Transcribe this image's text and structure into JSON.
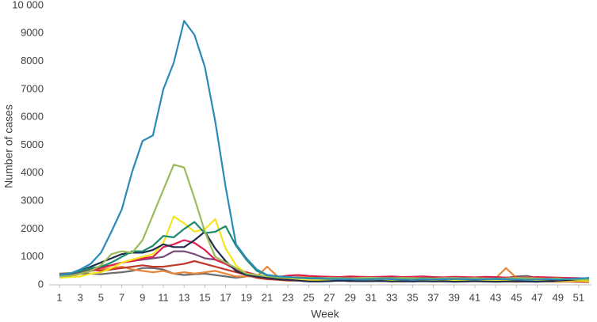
{
  "chart_data": {
    "type": "line",
    "y_label": "Number of cases",
    "x_label": "Week",
    "x": [
      1,
      2,
      3,
      4,
      5,
      6,
      7,
      8,
      9,
      10,
      11,
      12,
      13,
      14,
      15,
      16,
      17,
      18,
      19,
      20,
      21,
      22,
      23,
      24,
      25,
      26,
      27,
      28,
      29,
      30,
      31,
      32,
      33,
      34,
      35,
      36,
      37,
      38,
      39,
      40,
      41,
      42,
      43,
      44,
      45,
      46,
      47,
      48,
      49,
      50,
      51,
      52
    ],
    "xlim": [
      1,
      52
    ],
    "xticks": [
      1,
      3,
      5,
      7,
      9,
      11,
      13,
      15,
      17,
      19,
      21,
      23,
      25,
      27,
      29,
      31,
      33,
      35,
      37,
      39,
      41,
      43,
      45,
      47,
      49,
      51
    ],
    "ylim": [
      0,
      10000
    ],
    "yticks": [
      0,
      1000,
      2000,
      3000,
      4000,
      5000,
      6000,
      7000,
      8000,
      9000,
      {
        "value": 10000,
        "label": "10 000"
      }
    ],
    "grid": false,
    "series": [
      {
        "color": "#6d6d6d",
        "values": [
          400,
          420,
          400,
          400,
          380,
          420,
          450,
          500,
          600,
          600,
          550,
          400,
          350,
          380,
          400,
          350,
          300,
          250,
          300,
          300,
          280,
          250,
          240,
          230,
          220,
          220,
          230,
          250,
          280,
          260,
          250,
          240,
          230,
          250,
          240,
          230,
          250,
          240,
          230,
          250,
          240,
          250,
          260,
          250,
          300,
          320,
          250,
          220,
          200,
          180,
          160,
          150
        ]
      },
      {
        "color": "#e8863a",
        "values": [
          250,
          300,
          400,
          500,
          550,
          600,
          650,
          550,
          500,
          450,
          500,
          400,
          450,
          400,
          450,
          500,
          400,
          300,
          300,
          300,
          650,
          300,
          250,
          280,
          300,
          260,
          250,
          240,
          230,
          250,
          240,
          230,
          240,
          250,
          230,
          240,
          230,
          220,
          230,
          240,
          230,
          220,
          230,
          600,
          250,
          240,
          230,
          220,
          210,
          200,
          220,
          150
        ]
      },
      {
        "color": "#c0392b",
        "values": [
          300,
          350,
          450,
          550,
          500,
          550,
          600,
          650,
          700,
          650,
          650,
          700,
          750,
          850,
          750,
          650,
          550,
          450,
          350,
          250,
          200,
          180,
          150,
          150,
          160,
          150,
          140,
          150,
          130,
          140,
          150,
          140,
          130,
          120,
          130,
          140,
          130,
          120,
          130,
          120,
          130,
          120,
          130,
          120,
          110,
          120,
          130,
          120,
          110,
          120,
          110,
          100
        ]
      },
      {
        "color": "#7a4c78",
        "values": [
          350,
          380,
          450,
          550,
          650,
          700,
          800,
          850,
          900,
          950,
          1000,
          1200,
          1200,
          1100,
          950,
          900,
          750,
          550,
          400,
          350,
          300,
          280,
          260,
          250,
          230,
          240,
          230,
          240,
          220,
          230,
          210,
          220,
          230,
          220,
          210,
          200,
          210,
          220,
          200,
          210,
          220,
          210,
          200,
          190,
          200,
          210,
          200,
          190,
          180,
          200,
          190,
          180
        ]
      },
      {
        "color": "#e0204f",
        "values": [
          300,
          320,
          400,
          500,
          600,
          700,
          800,
          850,
          950,
          1000,
          1350,
          1450,
          1600,
          1500,
          1250,
          900,
          750,
          550,
          450,
          350,
          300,
          280,
          330,
          350,
          320,
          300,
          290,
          280,
          300,
          290,
          280,
          290,
          300,
          280,
          290,
          300,
          280,
          270,
          290,
          280,
          270,
          290,
          280,
          260,
          270,
          260,
          280,
          270,
          260,
          250,
          240,
          200
        ]
      },
      {
        "color": "#f5e61b",
        "values": [
          250,
          280,
          300,
          400,
          450,
          600,
          800,
          900,
          1000,
          1100,
          1500,
          2450,
          2200,
          1900,
          2000,
          2350,
          1300,
          700,
          400,
          350,
          300,
          250,
          220,
          200,
          180,
          170,
          160,
          160,
          150,
          150,
          160,
          150,
          140,
          150,
          160,
          150,
          140,
          150,
          160,
          150,
          140,
          150,
          140,
          150,
          140,
          150,
          140,
          150,
          130,
          140,
          150,
          130
        ]
      },
      {
        "color": "#1f2d4e",
        "values": [
          350,
          400,
          500,
          650,
          800,
          950,
          1100,
          1150,
          1150,
          1250,
          1450,
          1350,
          1350,
          1600,
          1900,
          1300,
          850,
          500,
          350,
          300,
          250,
          200,
          180,
          150,
          120,
          120,
          130,
          150,
          140,
          130,
          130,
          140,
          120,
          130,
          120,
          130,
          120,
          130,
          110,
          120,
          130,
          120,
          110,
          120,
          130,
          120,
          110,
          130,
          150,
          170,
          190,
          200
        ]
      },
      {
        "color": "#1b8a6b",
        "values": [
          350,
          400,
          500,
          600,
          650,
          800,
          1000,
          1200,
          1200,
          1400,
          1750,
          1700,
          2000,
          2250,
          1850,
          1900,
          2100,
          1400,
          900,
          500,
          350,
          300,
          280,
          260,
          250,
          250,
          240,
          250,
          230,
          240,
          230,
          240,
          250,
          240,
          230,
          240,
          230,
          220,
          230,
          240,
          230,
          220,
          230,
          220,
          200,
          210,
          200,
          220,
          210,
          200,
          230,
          240
        ]
      },
      {
        "color": "#9bbb59",
        "values": [
          300,
          320,
          400,
          500,
          700,
          1100,
          1200,
          1150,
          1600,
          2500,
          3400,
          4300,
          4200,
          3100,
          1900,
          1000,
          800,
          600,
          400,
          350,
          300,
          280,
          260,
          250,
          240,
          230,
          250,
          240,
          230,
          250,
          260,
          240,
          230,
          250,
          240,
          230,
          220,
          240,
          250,
          230,
          240,
          230,
          220,
          230,
          250,
          240,
          230,
          220,
          230,
          200,
          190,
          180
        ]
      },
      {
        "color": "#2a8ab8",
        "values": [
          350,
          400,
          550,
          750,
          1150,
          1900,
          2700,
          4050,
          5150,
          5350,
          7000,
          7950,
          9450,
          8950,
          7800,
          5850,
          3500,
          1450,
          950,
          550,
          350,
          300,
          280,
          250,
          230,
          220,
          210,
          200,
          200,
          190,
          200,
          210,
          200,
          190,
          180,
          200,
          190,
          200,
          210,
          200,
          190,
          200,
          210,
          200,
          190,
          180,
          190,
          200,
          190,
          210,
          220,
          250
        ]
      }
    ]
  }
}
